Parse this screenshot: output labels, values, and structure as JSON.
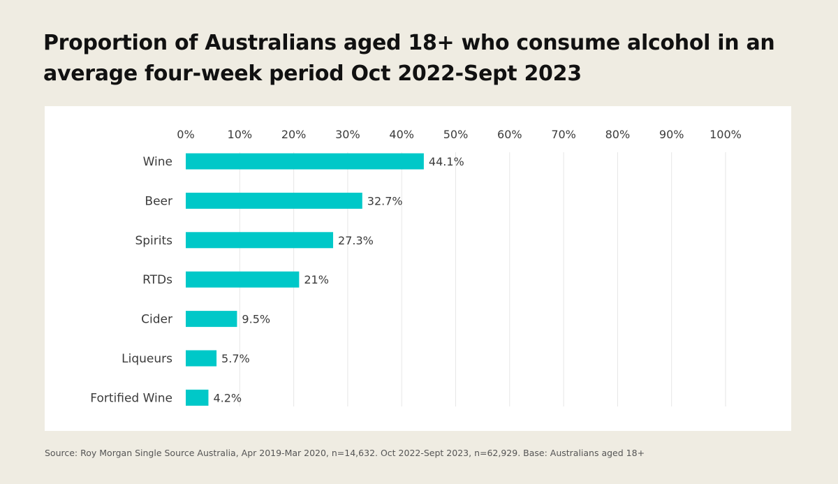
{
  "chart_data": {
    "type": "bar",
    "orientation": "horizontal",
    "title": "Proportion of Australians aged 18+ who consume alcohol in an average four-week period Oct 2022-Sept 2023",
    "xlabel": "",
    "ylabel": "",
    "xlim": [
      0,
      100
    ],
    "x_ticks": [
      "0%",
      "10%",
      "20%",
      "30%",
      "40%",
      "50%",
      "60%",
      "70%",
      "80%",
      "90%",
      "100%"
    ],
    "grid": "vertical",
    "legend": "none",
    "categories": [
      "Wine",
      "Beer",
      "Spirits",
      "RTDs",
      "Cider",
      "Liqueurs",
      "Fortified Wine"
    ],
    "values": [
      44.1,
      32.7,
      27.3,
      21,
      9.5,
      5.7,
      4.2
    ],
    "value_labels": [
      "44.1%",
      "32.7%",
      "27.3%",
      "21%",
      "9.5%",
      "5.7%",
      "4.2%"
    ],
    "bar_color": "#00c8c8"
  },
  "source": "Source: Roy Morgan Single Source Australia, Apr 2019-Mar 2020, n=14,632. Oct 2022-Sept 2023, n=62,929. Base: Australians aged 18+",
  "colors": {
    "background": "#efece2",
    "panel": "#ffffff",
    "gridline": "#e6e6e6",
    "text": "#3b3b3b"
  }
}
